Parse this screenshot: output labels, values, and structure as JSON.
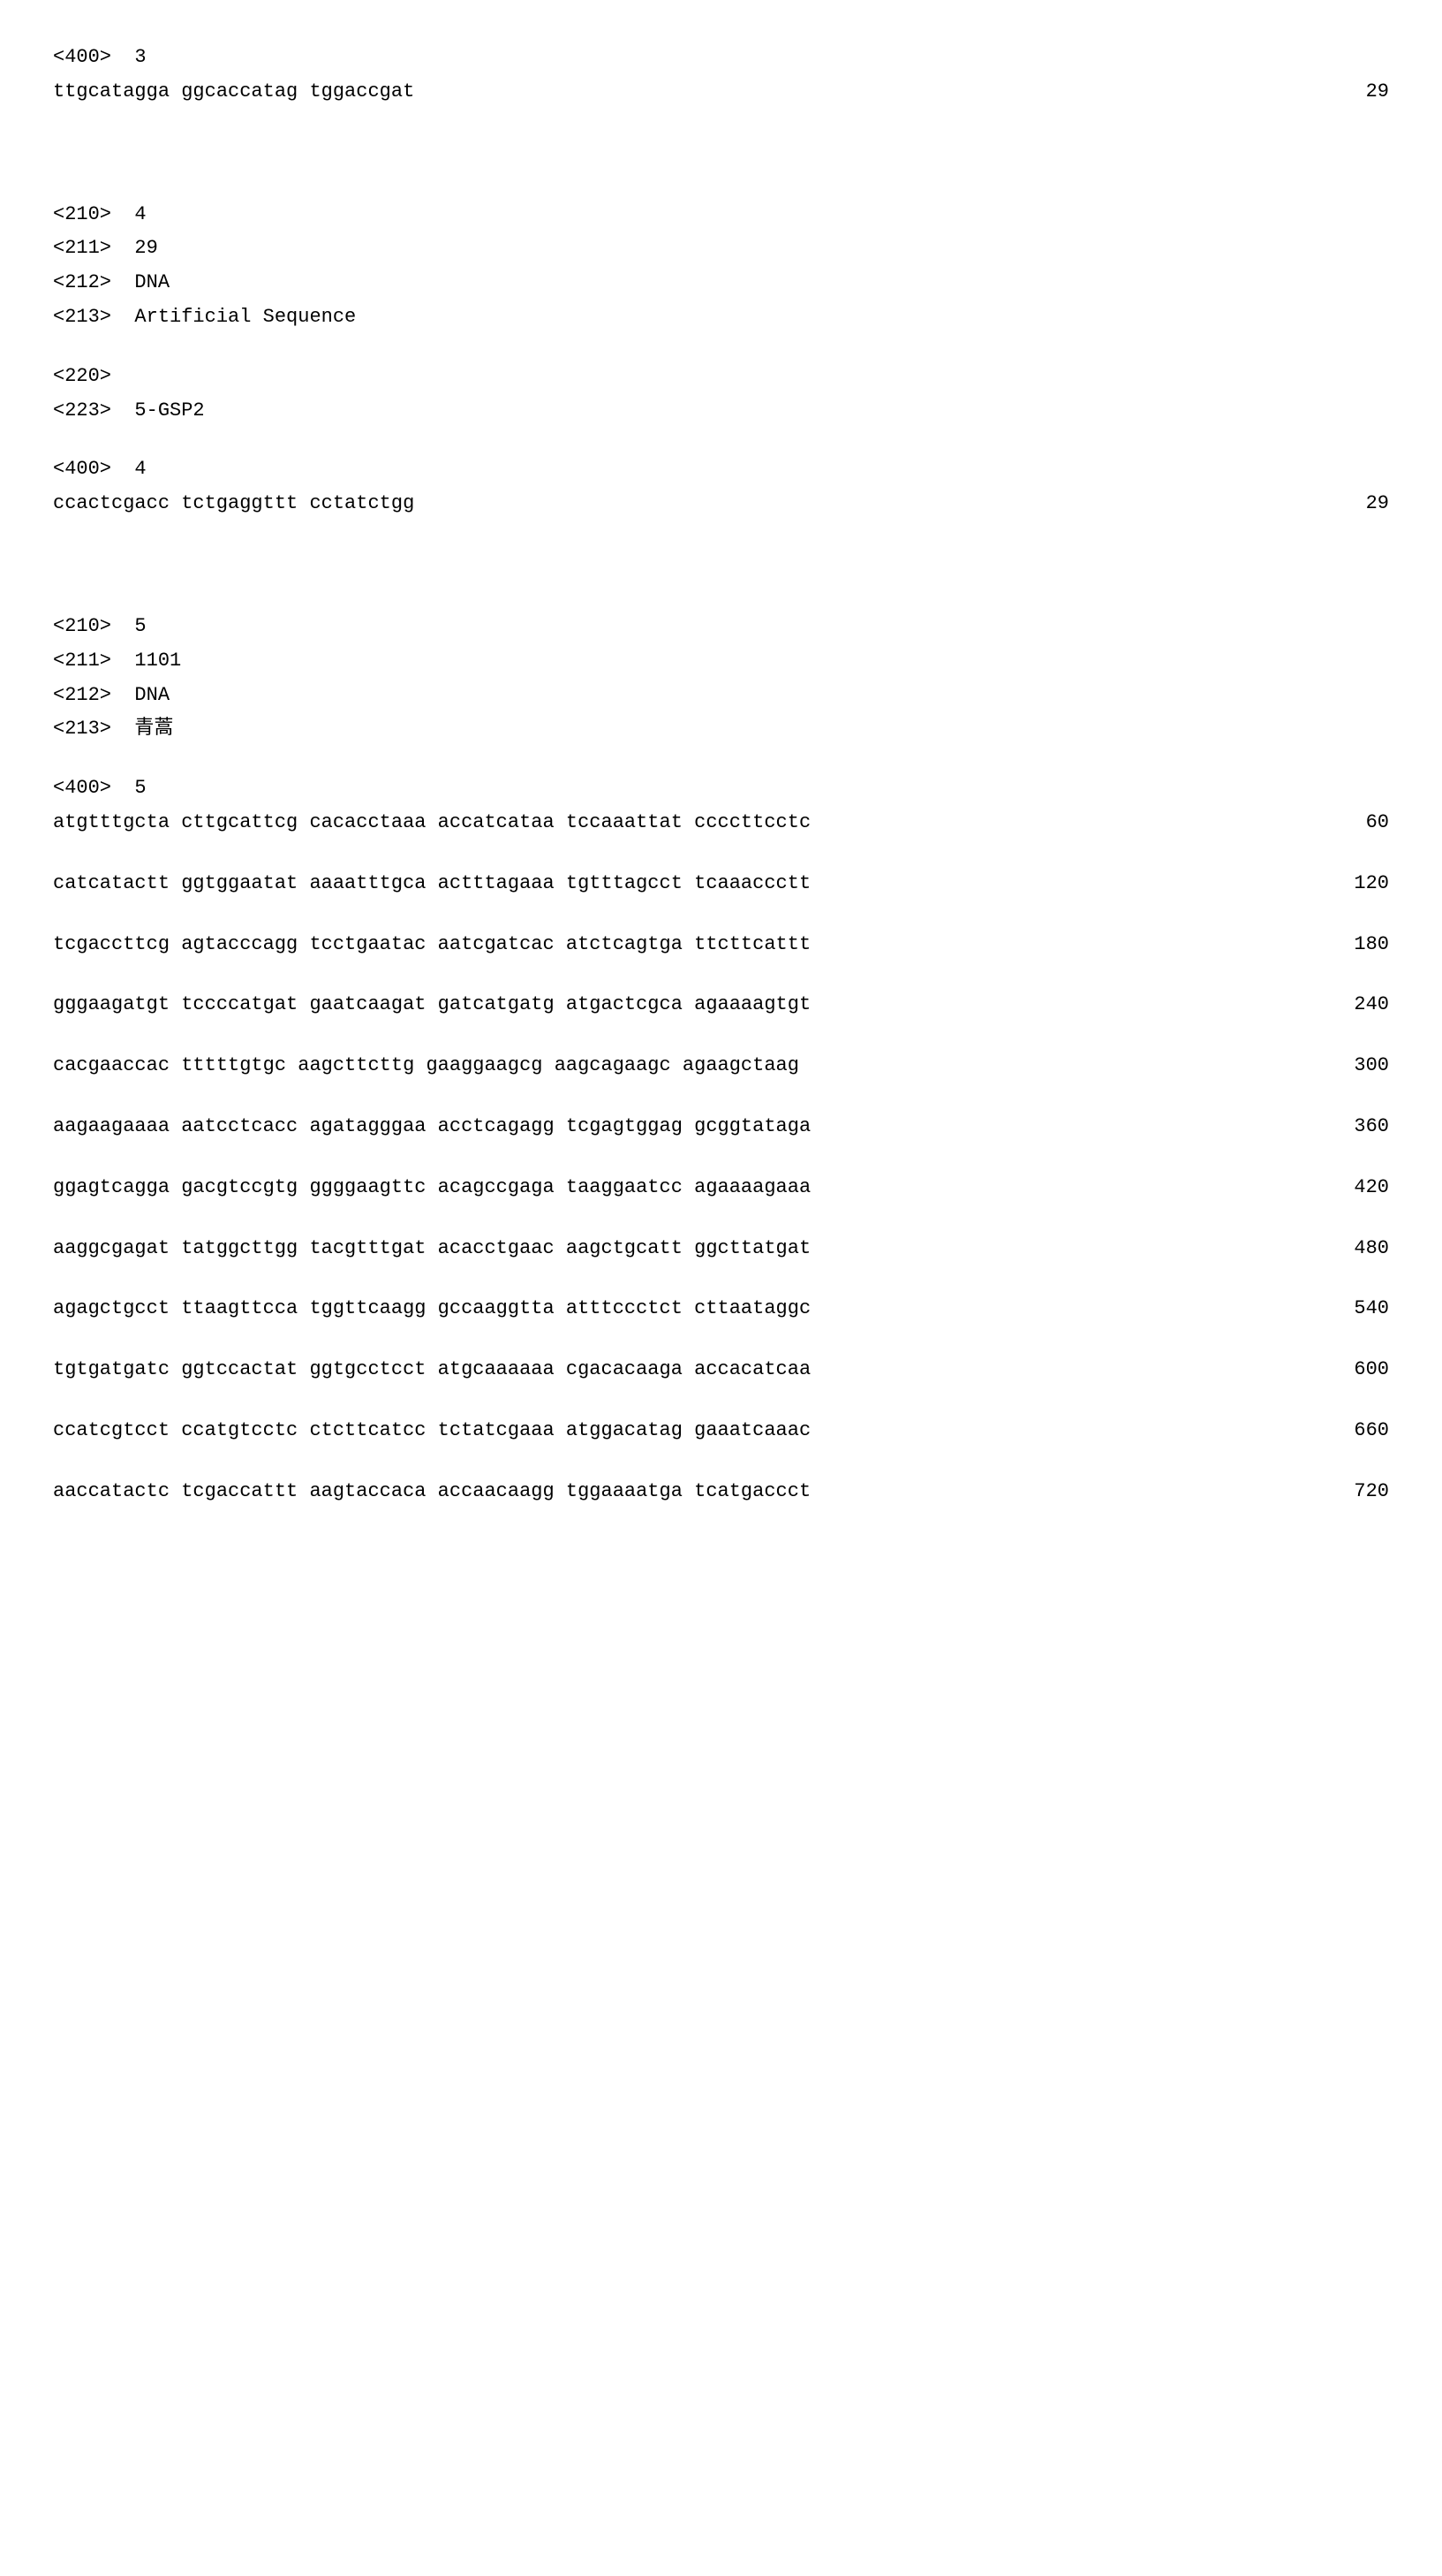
{
  "block_3": {
    "tag_400": "<400>  3",
    "seq": "ttgcatagga ggcaccatag tggaccgat",
    "len": "29"
  },
  "block_4": {
    "tag_210": "<210>  4",
    "tag_211": "<211>  29",
    "tag_212": "<212>  DNA",
    "tag_213": "<213>  Artificial Sequence",
    "tag_220": "<220>",
    "tag_223": "<223>  5-GSP2",
    "tag_400": "<400>  4",
    "seq": "ccactcgacc tctgaggttt cctatctgg",
    "len": "29"
  },
  "block_5": {
    "tag_210": "<210>  5",
    "tag_211": "<211>  1101",
    "tag_212": "<212>  DNA",
    "tag_213": "<213>  青蒿",
    "tag_400": "<400>  5",
    "rows": [
      {
        "seq": "atgtttgcta cttgcattcg cacacctaaa accatcataa tccaaattat ccccttcctc",
        "pos": "60"
      },
      {
        "seq": "catcatactt ggtggaatat aaaatttgca actttagaaa tgtttagcct tcaaaccctt",
        "pos": "120"
      },
      {
        "seq": "tcgaccttcg agtacccagg tcctgaatac aatcgatcac atctcagtga ttcttcattt",
        "pos": "180"
      },
      {
        "seq": "gggaagatgt tccccatgat gaatcaagat gatcatgatg atgactcgca agaaaagtgt",
        "pos": "240"
      },
      {
        "seq": "cacgaaccac tttttgtgc aagcttcttg gaaggaagcg aagcagaagc agaagctaag",
        "pos": "300"
      },
      {
        "seq": "aagaagaaaa aatcctcacc agatagggaa acctcagagg tcgagtggag gcggtataga",
        "pos": "360"
      },
      {
        "seq": "ggagtcagga gacgtccgtg ggggaagttc acagccgaga taaggaatcc agaaaagaaa",
        "pos": "420"
      },
      {
        "seq": "aaggcgagat tatggcttgg tacgtttgat acacctgaac aagctgcatt ggcttatgat",
        "pos": "480"
      },
      {
        "seq": "agagctgcct ttaagttcca tggttcaagg gccaaggtta atttccctct cttaataggc",
        "pos": "540"
      },
      {
        "seq": "tgtgatgatc ggtccactat ggtgcctcct atgcaaaaaa cgacacaaga accacatcaa",
        "pos": "600"
      },
      {
        "seq": "ccatcgtcct ccatgtcctc ctcttcatcc tctatcgaaa atggacatag gaaatcaaac",
        "pos": "660"
      },
      {
        "seq": "aaccatactc tcgaccattt aagtaccaca accaacaagg tggaaaatga tcatgaccct",
        "pos": "720"
      }
    ]
  }
}
